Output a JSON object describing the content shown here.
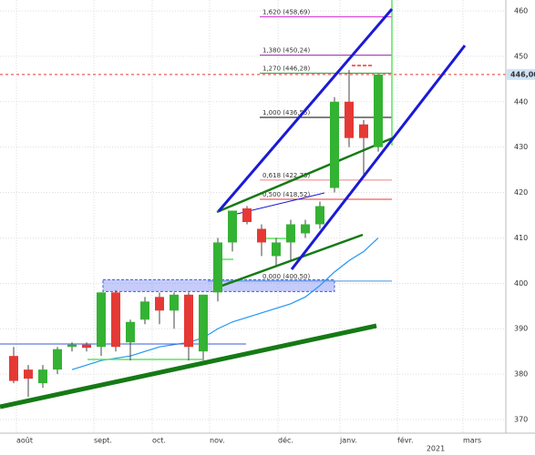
{
  "chart_data": {
    "type": "candlestick",
    "x_labels": [
      "août",
      "sept.",
      "oct.",
      "nov.",
      "déc.",
      "janv.",
      "févr.",
      "mars"
    ],
    "year_label": "2021",
    "open": [
      384,
      381,
      378,
      381,
      386,
      386.5,
      386,
      398,
      387,
      392,
      397,
      394,
      397.5,
      385,
      398,
      409,
      416.5,
      412,
      406,
      409,
      411,
      413,
      421,
      440,
      435,
      430
    ],
    "high": [
      386,
      382,
      382,
      386,
      387,
      387,
      398,
      398.5,
      392,
      397,
      398,
      398,
      398,
      397.5,
      410,
      416,
      417,
      413,
      410,
      414,
      414,
      418,
      441,
      447,
      436,
      446
    ],
    "low": [
      378,
      375,
      377,
      380,
      385,
      385,
      384,
      385,
      383,
      391,
      391,
      390,
      383,
      383,
      396,
      407,
      413,
      406,
      404,
      405,
      410,
      412,
      420,
      430,
      424,
      429
    ],
    "close": [
      378.5,
      379,
      381,
      385.5,
      386.5,
      385.8,
      398,
      386,
      391.5,
      396,
      394,
      397.5,
      386,
      397.5,
      409,
      416,
      413.5,
      409,
      409,
      413,
      413,
      417,
      440,
      432,
      432,
      446
    ],
    "up_color": "#34b233",
    "down_color": "#e53935",
    "moving_average": {
      "color": "#2196f3",
      "values": [
        null,
        null,
        null,
        null,
        381,
        382,
        383,
        383.5,
        384,
        385,
        386,
        386.5,
        387,
        388,
        390,
        391.5,
        392.5,
        393.5,
        394.5,
        395.5,
        397,
        399.5,
        402.5,
        405,
        407,
        410
      ]
    },
    "fib_levels": [
      {
        "label": "1,620 (458,69)",
        "value": 458.69,
        "color": "#d633d6"
      },
      {
        "label": "1,380 (450,24)",
        "value": 450.24,
        "color": "#9c27b0"
      },
      {
        "label": "1,270 (446,28)",
        "value": 446.28,
        "color": "#2e9e2e"
      },
      {
        "label": "1,000 (436,55)",
        "value": 436.55,
        "color": "#000000"
      },
      {
        "label": "0,618 (422,73)",
        "value": 422.73,
        "color": "#f08080"
      },
      {
        "label": "0,500 (418,52)",
        "value": 418.52,
        "color": "#e53935"
      },
      {
        "label": "0,000 (400,50)",
        "value": 400.5,
        "color": "#4a90e2"
      }
    ],
    "current_price": {
      "value": 446,
      "label": "446,00"
    },
    "zone": [
      398.2,
      400.8
    ],
    "ylim": [
      367,
      462.4
    ],
    "yticks": [
      370,
      380,
      390,
      400,
      410,
      420,
      430,
      440,
      450,
      460
    ],
    "grid": true
  }
}
